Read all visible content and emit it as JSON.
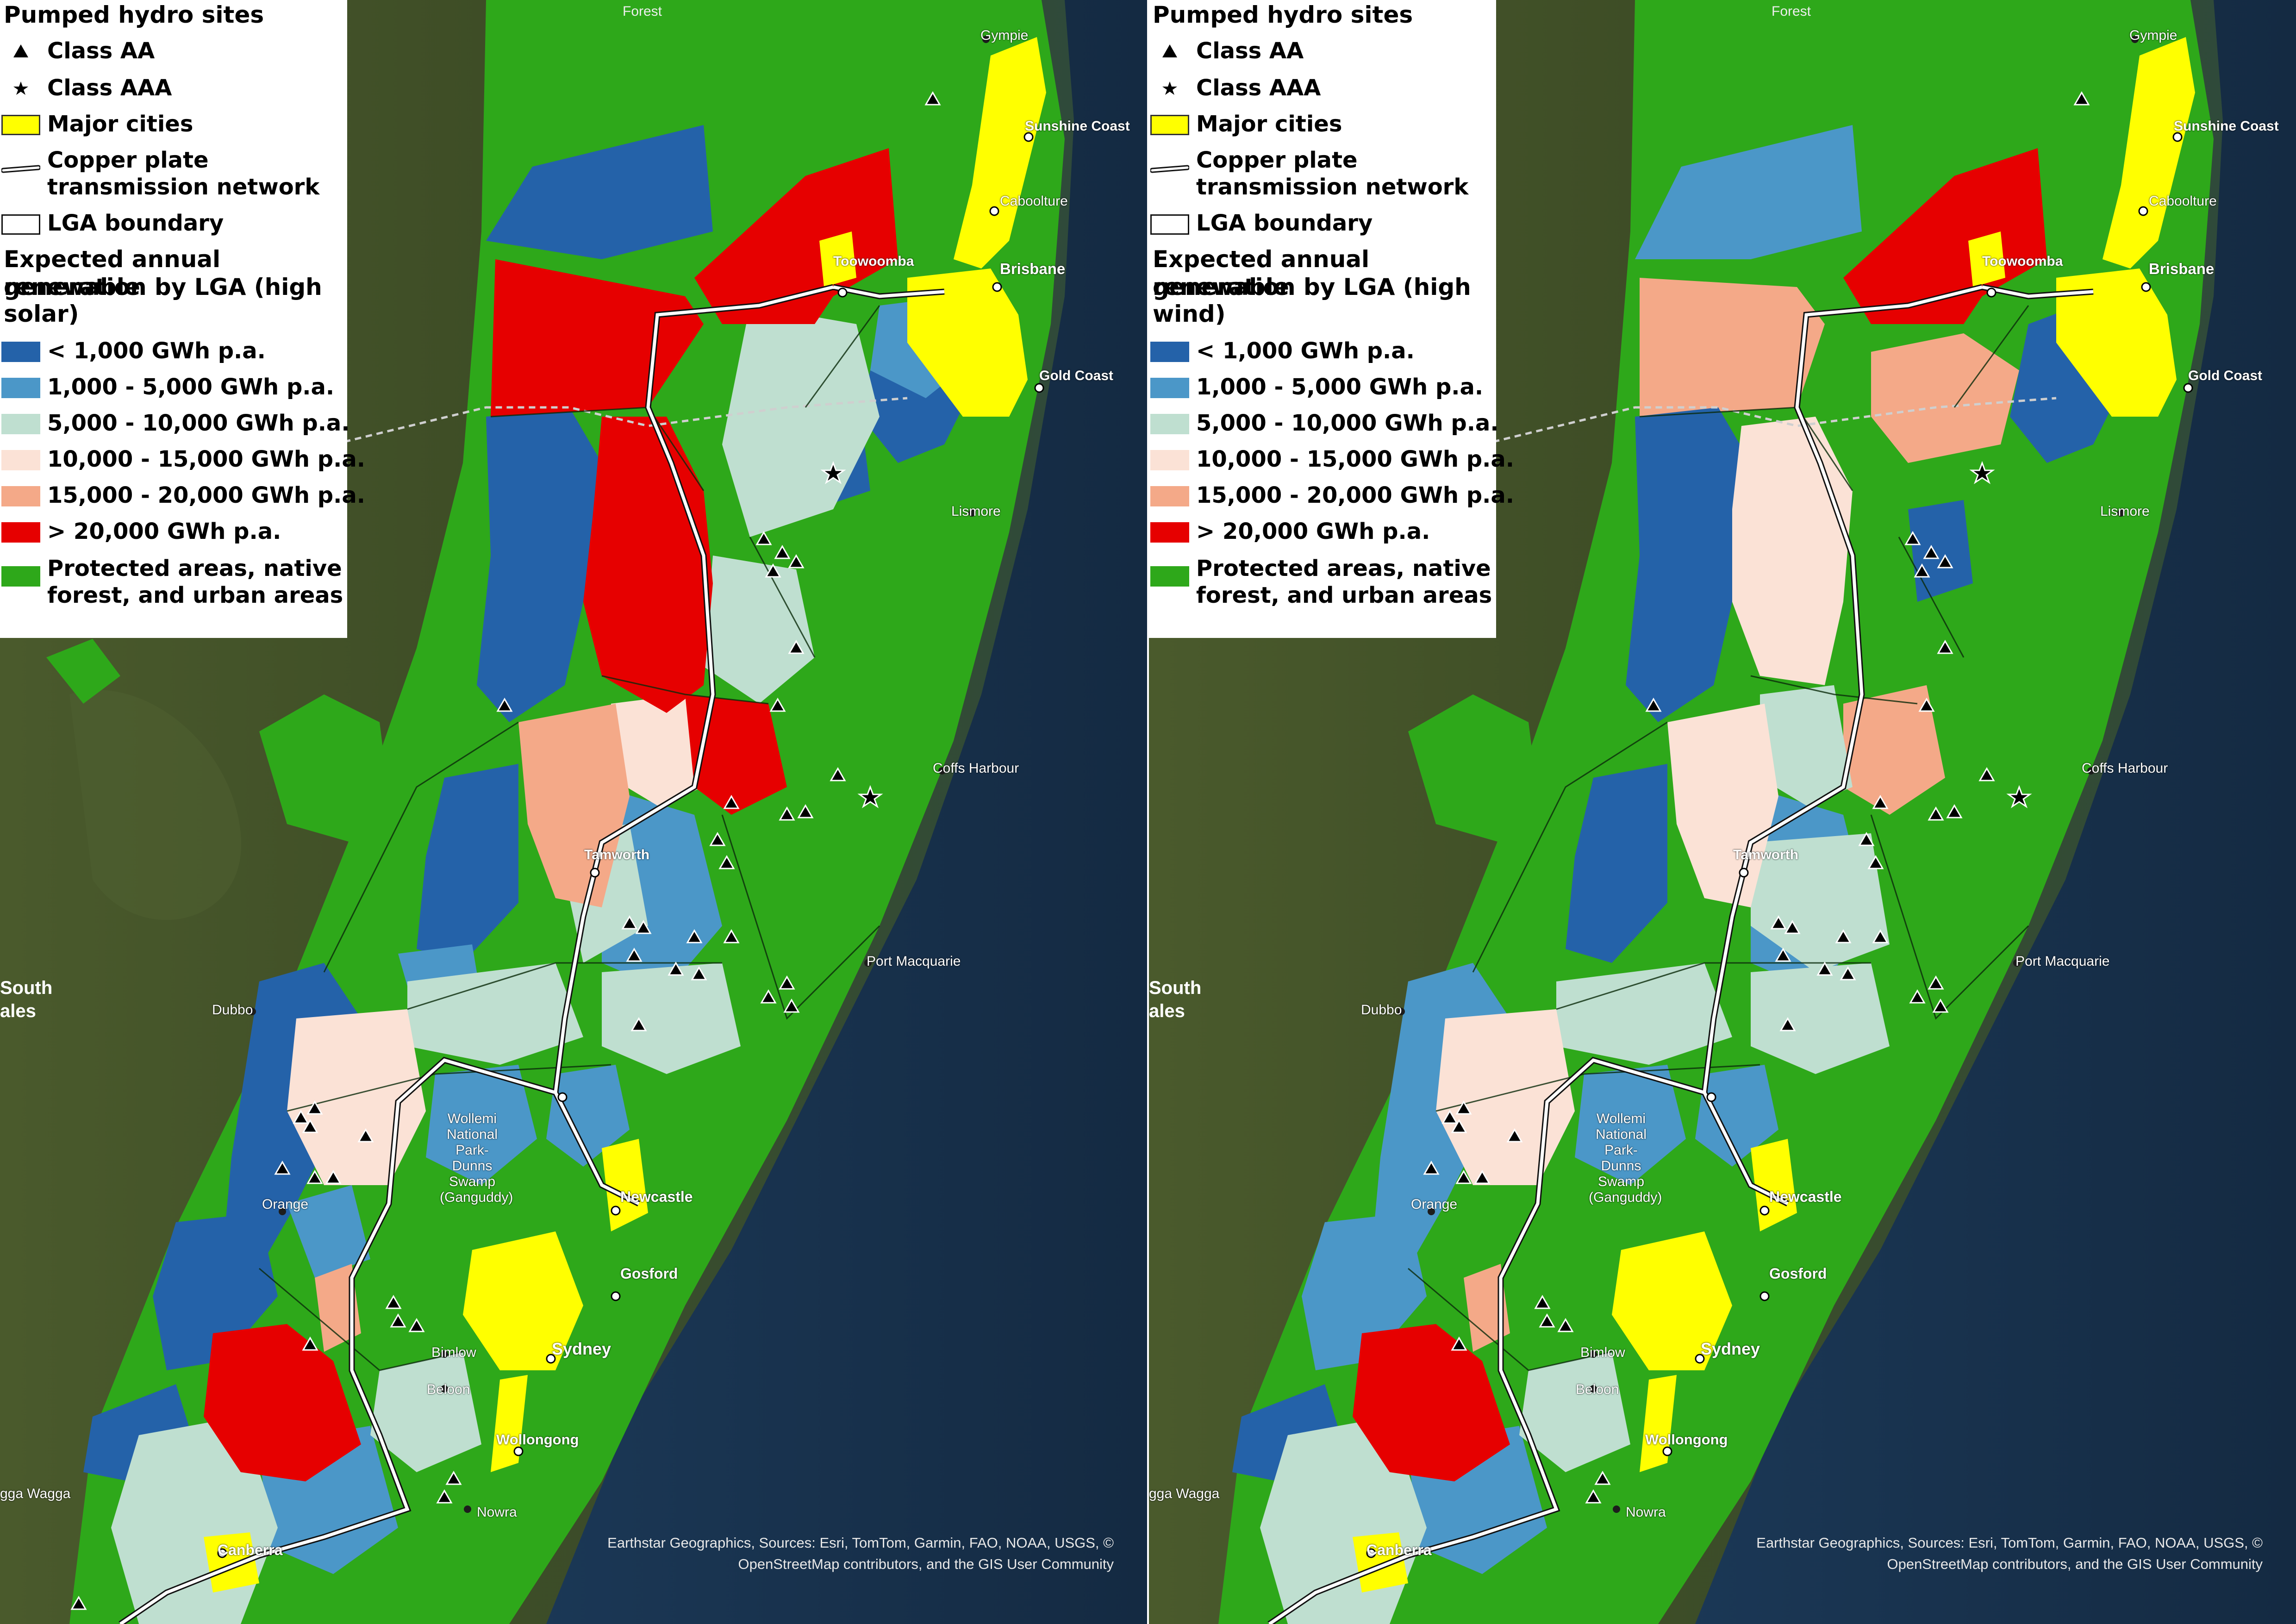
{
  "legend": {
    "pumped_hydro_title": "Pumped hydro sites",
    "class_aa": "Class AA",
    "class_aaa": "Class AAA",
    "major_cities": "Major cities",
    "copper_plate_1": "Copper plate",
    "copper_plate_2": "transmission network",
    "lga_boundary": "LGA boundary",
    "expected_1": "Expected annual renewable",
    "expected_2": "generation by LGA (high",
    "classes": [
      {
        "label": "< 1,000 GWh p.a.",
        "color": "#2462a9"
      },
      {
        "label": "1,000 - 5,000 GWh p.a.",
        "color": "#4b97c8"
      },
      {
        "label": "5,000 - 10,000 GWh p.a.",
        "color": "#bfdfd0"
      },
      {
        "label": "10,000 - 15,000 GWh p.a.",
        "color": "#fbe2d6"
      },
      {
        "label": "15,000 - 20,000 GWh p.a.",
        "color": "#f4a988"
      },
      {
        "label": "> 20,000 GWh p.a.",
        "color": "#e60000"
      }
    ],
    "protected_1": "Protected areas, native",
    "protected_2": "forest, and urban areas",
    "protected_color": "#2ea81a",
    "city_color": "#ffff00"
  },
  "panels": {
    "left": {
      "scenario_suffix": "solar)"
    },
    "right": {
      "scenario_suffix": "wind)"
    }
  },
  "places": {
    "forest": "Forest",
    "gympie": "Gympie",
    "sunshine_coast": "Sunshine Coast",
    "caboolture": "Caboolture",
    "toowoomba": "Toowoomba",
    "brisbane": "Brisbane",
    "gold_coast": "Gold Coast",
    "lismore": "Lismore",
    "coffs_harbour": "Coffs Harbour",
    "tamworth": "Tamworth",
    "port_macquarie": "Port Macquarie",
    "south": "South",
    "ales": "ales",
    "dubbo": "Dubbo",
    "wollemi_1": "Wollemi",
    "wollemi_2": "National",
    "wollemi_3": "Park-Dunns",
    "wollemi_4": "Swamp",
    "wollemi_5": "(Ganguddy)",
    "orange": "Orange",
    "newcastle": "Newcastle",
    "gosford": "Gosford",
    "sydney": "Sydney",
    "bimlow": "Bimlow",
    "beloon": "Beloon",
    "wollongong": "Wollongong",
    "wagga": "gga Wagga",
    "nowra": "Nowra",
    "canberra": "Canberra"
  },
  "credit": {
    "line1": "Earthstar Geographics, Sources: Esri, TomTom, Garmin, FAO, NOAA, USGS, ©",
    "line2": "OpenStreetMap contributors, and the GIS User Community"
  }
}
